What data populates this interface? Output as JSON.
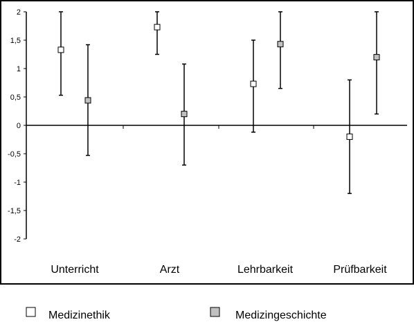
{
  "chart_data": {
    "type": "scatter",
    "title": "",
    "xlabel": "",
    "ylabel": "",
    "categories": [
      "Unterricht",
      "Arzt",
      "Lehrbarkeit",
      "Prüfbarkeit"
    ],
    "ylim": [
      -2,
      2
    ],
    "yticks": [
      2,
      1.5,
      1,
      0.5,
      0,
      -0.5,
      -1,
      -1.5,
      -2
    ],
    "ytick_labels": [
      "2",
      "1,5",
      "1",
      "0,5",
      "0",
      "-0,5",
      "-1",
      "-1,5",
      "-2"
    ],
    "grid": false,
    "legend_position": "bottom",
    "series": [
      {
        "name": "Medizinethik",
        "color": "#ffffff",
        "values": [
          1.33,
          1.73,
          0.73,
          -0.2
        ],
        "error_low": [
          0.53,
          1.25,
          -0.12,
          -1.2
        ],
        "error_high": [
          2.0,
          2.0,
          1.5,
          0.8
        ]
      },
      {
        "name": "Medizingeschichte",
        "color": "#c0c0c0",
        "values": [
          0.44,
          0.2,
          1.43,
          1.2
        ],
        "error_low": [
          -0.53,
          -0.7,
          0.65,
          0.2
        ],
        "error_high": [
          1.42,
          1.08,
          2.0,
          2.0
        ]
      }
    ]
  }
}
